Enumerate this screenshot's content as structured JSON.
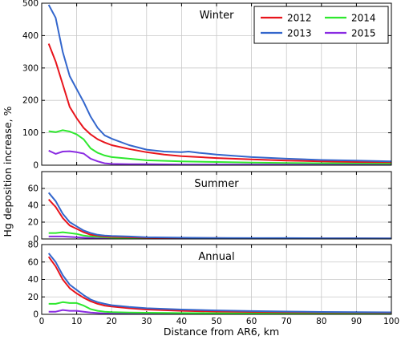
{
  "chart_data": {
    "type": "line",
    "xlabel": "Distance from AR6, km",
    "ylabel": "Hg deposition increase, %",
    "x_ticks": [
      0,
      10,
      20,
      30,
      40,
      50,
      60,
      70,
      80,
      90,
      100
    ],
    "xlim": [
      0,
      100
    ],
    "grid": true,
    "legend": {
      "placement": "top-right",
      "columns": 2,
      "entries": [
        "2012",
        "2013",
        "2014",
        "2015"
      ]
    },
    "colors": {
      "2012": "#e8141c",
      "2013": "#3366cc",
      "2014": "#2ee82e",
      "2015": "#8a2be2"
    },
    "panels": [
      {
        "title": "Winter",
        "ylim": [
          0,
          500
        ],
        "y_ticks": [
          0,
          100,
          200,
          300,
          400,
          500
        ],
        "series": [
          {
            "name": "2012",
            "x": [
              2,
              4,
              6,
              8,
              10,
              12,
              14,
              16,
              18,
              20,
              25,
              30,
              35,
              40,
              45,
              50,
              60,
              70,
              80,
              90,
              100
            ],
            "y": [
              375,
              320,
              250,
              180,
              145,
              115,
              95,
              80,
              70,
              62,
              50,
              40,
              33,
              28,
              25,
              22,
              18,
              14,
              12,
              10,
              9
            ]
          },
          {
            "name": "2013",
            "x": [
              2,
              4,
              6,
              8,
              10,
              12,
              14,
              16,
              18,
              20,
              25,
              30,
              35,
              40,
              42,
              45,
              50,
              60,
              70,
              80,
              90,
              100
            ],
            "y": [
              495,
              455,
              350,
              275,
              235,
              195,
              150,
              115,
              92,
              82,
              62,
              48,
              42,
              40,
              42,
              38,
              33,
              25,
              20,
              16,
              14,
              12
            ]
          },
          {
            "name": "2014",
            "x": [
              2,
              4,
              6,
              8,
              10,
              12,
              14,
              16,
              18,
              20,
              25,
              30,
              40,
              50,
              60,
              70,
              80,
              90,
              100
            ],
            "y": [
              105,
              102,
              108,
              104,
              95,
              80,
              52,
              38,
              30,
              25,
              20,
              15,
              12,
              10,
              8,
              7,
              6,
              6,
              5
            ]
          },
          {
            "name": "2015",
            "x": [
              2,
              4,
              6,
              8,
              10,
              12,
              14,
              16,
              18,
              20,
              25,
              30,
              40,
              50,
              60,
              70,
              80,
              90,
              100
            ],
            "y": [
              45,
              35,
              42,
              43,
              40,
              36,
              20,
              12,
              6,
              4,
              3,
              3,
              2,
              2,
              2,
              2,
              2,
              2,
              2
            ]
          }
        ]
      },
      {
        "title": "Summer",
        "ylim": [
          0,
          80
        ],
        "y_ticks": [
          0,
          20,
          40,
          60
        ],
        "series": [
          {
            "name": "2012",
            "x": [
              2,
              4,
              6,
              8,
              10,
              12,
              14,
              16,
              18,
              20,
              25,
              30,
              40,
              50,
              60,
              70,
              80,
              90,
              100
            ],
            "y": [
              47,
              38,
              25,
              16,
              12,
              8,
              5,
              4,
              3,
              2.5,
              2,
              1.5,
              1,
              1,
              0.8,
              0.8,
              0.7,
              0.7,
              0.6
            ]
          },
          {
            "name": "2013",
            "x": [
              2,
              4,
              6,
              8,
              10,
              12,
              14,
              16,
              18,
              20,
              25,
              30,
              40,
              50,
              60,
              70,
              80,
              90,
              100
            ],
            "y": [
              55,
              45,
              30,
              20,
              15,
              10,
              7,
              5,
              4,
              3.5,
              3,
              2,
              1.5,
              1.2,
              1,
              1,
              0.9,
              0.9,
              0.8
            ]
          },
          {
            "name": "2014",
            "x": [
              2,
              4,
              6,
              8,
              10,
              12,
              14,
              16,
              18,
              20,
              25,
              30,
              40,
              50,
              60,
              70,
              80,
              90,
              100
            ],
            "y": [
              7,
              7,
              8,
              7,
              6,
              4,
              3,
              2.5,
              2,
              1.5,
              1.2,
              1,
              0.8,
              0.7,
              0.6,
              0.6,
              0.5,
              0.5,
              0.5
            ]
          },
          {
            "name": "2015",
            "x": [
              2,
              4,
              6,
              8,
              10,
              12,
              14,
              16,
              18,
              20,
              25,
              30,
              40,
              50,
              60,
              70,
              80,
              90,
              100
            ],
            "y": [
              3,
              3,
              3,
              2.5,
              2,
              1.5,
              1,
              0.8,
              0.6,
              0.5,
              0.5,
              0.4,
              0.3,
              0.3,
              0.3,
              0.3,
              0.3,
              0.3,
              0.3
            ]
          }
        ]
      },
      {
        "title": "Annual",
        "ylim": [
          0,
          80
        ],
        "y_ticks": [
          0,
          20,
          40,
          60,
          80
        ],
        "series": [
          {
            "name": "2012",
            "x": [
              2,
              4,
              6,
              8,
              10,
              12,
              14,
              16,
              18,
              20,
              25,
              30,
              40,
              50,
              60,
              70,
              80,
              90,
              100
            ],
            "y": [
              66,
              55,
              40,
              30,
              24,
              19,
              15,
              12,
              10,
              9,
              7,
              5.5,
              4,
              3.2,
              2.8,
              2.4,
              2.2,
              2,
              1.8
            ]
          },
          {
            "name": "2013",
            "x": [
              2,
              4,
              6,
              8,
              10,
              12,
              14,
              16,
              18,
              20,
              25,
              30,
              40,
              50,
              60,
              70,
              80,
              90,
              100
            ],
            "y": [
              70,
              60,
              45,
              34,
              28,
              22,
              17,
              14,
              12,
              10.5,
              8.5,
              7,
              5.5,
              4.5,
              3.8,
              3.2,
              2.8,
              2.5,
              2.3
            ]
          },
          {
            "name": "2014",
            "x": [
              2,
              4,
              6,
              8,
              10,
              12,
              14,
              16,
              18,
              20,
              25,
              30,
              40,
              50,
              60,
              70,
              80,
              90,
              100
            ],
            "y": [
              12,
              12,
              14,
              13,
              13,
              10,
              6,
              4,
              3,
              2.5,
              2,
              1.8,
              1.5,
              1.3,
              1.1,
              1,
              1,
              0.9,
              0.9
            ]
          },
          {
            "name": "2015",
            "x": [
              2,
              4,
              6,
              8,
              10,
              12,
              14,
              16,
              18,
              20,
              25,
              30,
              40,
              50,
              60,
              70,
              80,
              90,
              100
            ],
            "y": [
              3,
              3,
              5,
              4,
              4,
              3,
              2,
              1.5,
              1,
              0.8,
              0.7,
              0.6,
              0.5,
              0.5,
              0.4,
              0.4,
              0.4,
              0.4,
              0.4
            ]
          }
        ]
      }
    ]
  }
}
